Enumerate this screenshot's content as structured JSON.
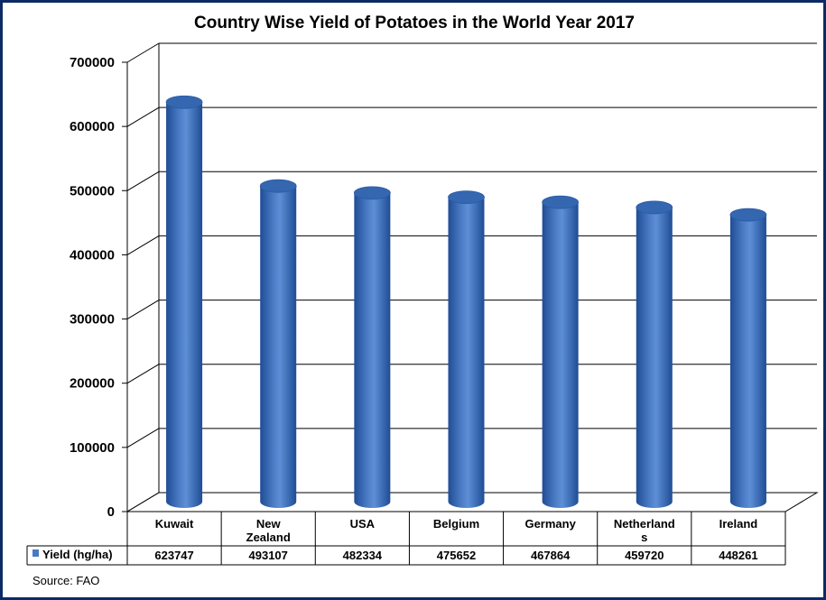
{
  "chart_data": {
    "type": "bar",
    "style": "3d-cylinder",
    "title": "Country Wise Yield of Potatoes in the World Year 2017",
    "categories": [
      [
        "Kuwait"
      ],
      [
        "New",
        "Zealand"
      ],
      [
        "USA"
      ],
      [
        "Belgium"
      ],
      [
        "Germany"
      ],
      [
        "Netherland",
        "s"
      ],
      [
        "Ireland"
      ]
    ],
    "series": [
      {
        "name": "Yield (hg/ha)",
        "values": [
          623747,
          493107,
          482334,
          475652,
          467864,
          459720,
          448261
        ],
        "value_labels": [
          "623747",
          "493107",
          "482334",
          "475652",
          "467864",
          "459720",
          "448261"
        ]
      }
    ],
    "ylim": [
      0,
      700000
    ],
    "yticks": [
      0,
      100000,
      200000,
      300000,
      400000,
      500000,
      600000,
      700000
    ],
    "ytick_labels": [
      "0",
      "100000",
      "200000",
      "300000",
      "400000",
      "500000",
      "600000",
      "700000"
    ],
    "grid": true,
    "legend": "data-table",
    "source": "Source: FAO",
    "colors": {
      "bar": "#4a7ac4",
      "bar_dark": "#1f4d95",
      "bar_top": "#3566b0",
      "frame": "#0b2a66",
      "legend_key": "#4a7ac4"
    }
  }
}
